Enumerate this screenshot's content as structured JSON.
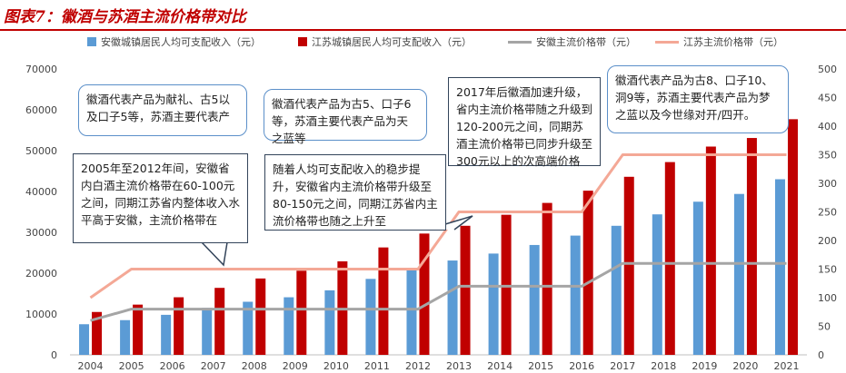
{
  "figure_title": "图表7：徽酒与苏酒主流价格带对比",
  "colors": {
    "anhui_income": "#5b9bd5",
    "jiangsu_income": "#c00000",
    "anhui_price": "#a5a5a5",
    "jiangsu_price": "#f4a896",
    "title_red": "#c00000",
    "callout_border": "#5b8fc9",
    "callout_border_dark": "#33445a"
  },
  "callouts": {
    "c1": "徽酒代表产品为献礼、古5以及口子5等，苏酒主要代表产",
    "c2": "2005年至2012年间，安徽省内白酒主流价格带在60-100元之间，同期江苏省内整体收入水平高于安徽，主流价格带在",
    "c3": "徽酒代表产品为古5、口子6等，苏酒主要代表产品为天之蓝等",
    "c4": "随着人均可支配收入的稳步提升，安徽省内主流价格带升级至80-150元之间，同期江苏省内主流价格带也随之上升至",
    "c5": "2017年后徽酒加速升级，省内主流价格带随之升级到120-200元之间，同期苏酒主流价格带已同步升级至300元以上的次高端价格",
    "c6": "徽酒代表产品为古8、口子10、洞9等，苏酒主要代表产品为梦之蓝以及今世缘对开/四开。"
  },
  "chart_data": {
    "type": "bar",
    "categories": [
      "2004",
      "2005",
      "2006",
      "2007",
      "2008",
      "2009",
      "2010",
      "2011",
      "2012",
      "2013",
      "2014",
      "2015",
      "2016",
      "2017",
      "2018",
      "2019",
      "2020",
      "2021"
    ],
    "series": [
      {
        "name": "安徽城镇居民人均可支配收入（元）",
        "kind": "bar",
        "axis": "left",
        "values": [
          7500,
          8500,
          9800,
          11500,
          13000,
          14100,
          15800,
          18600,
          21000,
          23100,
          24800,
          26900,
          29200,
          31600,
          34400,
          37500,
          39400,
          43000
        ]
      },
      {
        "name": "江苏城镇居民人均可支配收入（元）",
        "kind": "bar",
        "axis": "left",
        "values": [
          10500,
          12300,
          14100,
          16400,
          18700,
          20600,
          22900,
          26300,
          29700,
          31600,
          34300,
          37200,
          40200,
          43600,
          47200,
          51000,
          53100,
          57700
        ]
      },
      {
        "name": "安徽主流价格带（元）",
        "kind": "line",
        "axis": "right",
        "values": [
          60,
          80,
          80,
          80,
          80,
          80,
          80,
          80,
          80,
          120,
          120,
          120,
          120,
          160,
          160,
          160,
          160,
          160
        ]
      },
      {
        "name": "江苏主流价格带（元）",
        "kind": "line",
        "axis": "right",
        "values": [
          100,
          150,
          150,
          150,
          150,
          150,
          150,
          150,
          150,
          250,
          250,
          250,
          250,
          350,
          350,
          350,
          350,
          350
        ]
      }
    ],
    "ylim_left": [
      0,
      70000
    ],
    "yticks_left": [
      "0",
      "10000",
      "20000",
      "30000",
      "40000",
      "50000",
      "60000",
      "70000"
    ],
    "ylim_right": [
      0,
      500
    ],
    "yticks_right": [
      "0",
      "50",
      "100",
      "150",
      "200",
      "250",
      "300",
      "350",
      "400",
      "450",
      "500"
    ],
    "grid": false,
    "legend_position": "top"
  }
}
